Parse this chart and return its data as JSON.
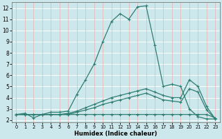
{
  "xlabel": "Humidex (Indice chaleur)",
  "ylabel": "",
  "bg_color": "#cde8ec",
  "line_color": "#2e7d72",
  "xlim": [
    -0.5,
    23.5
  ],
  "ylim": [
    1.8,
    12.5
  ],
  "xticks": [
    0,
    1,
    2,
    3,
    4,
    5,
    6,
    7,
    8,
    9,
    10,
    11,
    12,
    13,
    14,
    15,
    16,
    17,
    18,
    19,
    20,
    21,
    22,
    23
  ],
  "yticks": [
    2,
    3,
    4,
    5,
    6,
    7,
    8,
    9,
    10,
    11,
    12
  ],
  "curve_max": {
    "x": [
      0,
      1,
      2,
      3,
      4,
      5,
      6,
      7,
      8,
      9,
      10,
      11,
      12,
      13,
      14,
      15,
      16,
      17,
      18,
      19,
      20,
      21,
      22,
      23
    ],
    "y": [
      2.5,
      2.6,
      2.2,
      2.5,
      2.7,
      2.7,
      2.8,
      4.3,
      5.6,
      7.0,
      9.0,
      10.8,
      11.5,
      11.0,
      12.1,
      12.2,
      8.7,
      5.0,
      5.2,
      5.0,
      3.0,
      2.3,
      2.1,
      2.1
    ]
  },
  "curve_mean": {
    "x": [
      0,
      1,
      2,
      3,
      4,
      5,
      6,
      7,
      8,
      9,
      10,
      11,
      12,
      13,
      14,
      15,
      16,
      17,
      18,
      19,
      20,
      21,
      22,
      23
    ],
    "y": [
      2.5,
      2.5,
      2.5,
      2.5,
      2.5,
      2.5,
      2.6,
      2.8,
      3.1,
      3.4,
      3.7,
      4.0,
      4.2,
      4.4,
      4.6,
      4.8,
      4.5,
      4.2,
      4.0,
      4.0,
      5.6,
      5.0,
      3.2,
      2.1
    ]
  },
  "curve_p75": {
    "x": [
      0,
      1,
      2,
      3,
      4,
      5,
      6,
      7,
      8,
      9,
      10,
      11,
      12,
      13,
      14,
      15,
      16,
      17,
      18,
      19,
      20,
      21,
      22,
      23
    ],
    "y": [
      2.5,
      2.5,
      2.5,
      2.5,
      2.5,
      2.5,
      2.5,
      2.7,
      2.9,
      3.1,
      3.4,
      3.6,
      3.8,
      4.0,
      4.2,
      4.4,
      4.1,
      3.8,
      3.7,
      3.6,
      4.8,
      4.5,
      2.9,
      2.1
    ]
  },
  "curve_min": {
    "x": [
      0,
      1,
      2,
      3,
      4,
      5,
      6,
      7,
      8,
      9,
      10,
      11,
      12,
      13,
      14,
      15,
      16,
      17,
      18,
      19,
      20,
      21,
      22,
      23
    ],
    "y": [
      2.5,
      2.5,
      2.5,
      2.5,
      2.5,
      2.5,
      2.5,
      2.5,
      2.5,
      2.5,
      2.5,
      2.5,
      2.5,
      2.5,
      2.5,
      2.5,
      2.5,
      2.5,
      2.5,
      2.5,
      2.5,
      2.5,
      2.5,
      2.2
    ]
  }
}
